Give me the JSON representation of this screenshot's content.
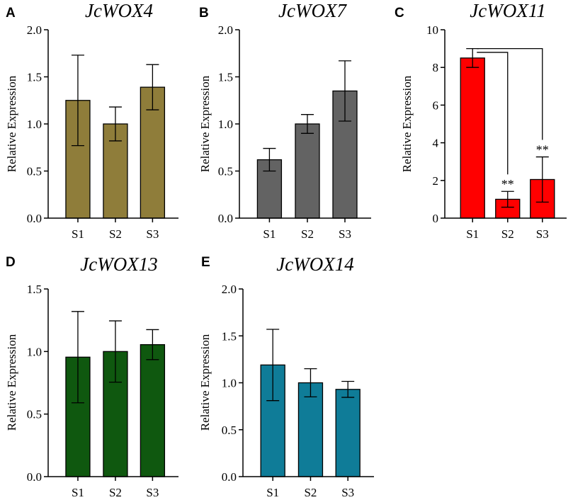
{
  "chart_data": [
    {
      "type": "bar",
      "panel": "A",
      "title": "JcWOX4",
      "ylabel": "Relative Expression",
      "xlabel": "",
      "categories": [
        "S1",
        "S2",
        "S3"
      ],
      "values": [
        1.25,
        1.0,
        1.39
      ],
      "errors": [
        0.48,
        0.18,
        0.24
      ],
      "ylim": [
        0,
        2.0
      ],
      "yticks": [
        "0.0",
        "0.5",
        "1.0",
        "1.5",
        "2.0"
      ],
      "color": "#8F7D3A",
      "significance": [],
      "brackets": []
    },
    {
      "type": "bar",
      "panel": "B",
      "title": "JcWOX7",
      "ylabel": "Relative Expression",
      "xlabel": "",
      "categories": [
        "S1",
        "S2",
        "S3"
      ],
      "values": [
        0.62,
        1.0,
        1.35
      ],
      "errors": [
        0.12,
        0.1,
        0.32
      ],
      "ylim": [
        0,
        2.0
      ],
      "yticks": [
        "0.0",
        "0.5",
        "1.0",
        "1.5",
        "2.0"
      ],
      "color": "#636363",
      "significance": [],
      "brackets": []
    },
    {
      "type": "bar",
      "panel": "C",
      "title": "JcWOX11",
      "ylabel": "Relative Expression",
      "xlabel": "",
      "categories": [
        "S1",
        "S2",
        "S3"
      ],
      "values": [
        8.5,
        1.0,
        2.05
      ],
      "errors": [
        0.5,
        0.42,
        1.2
      ],
      "ylim": [
        0,
        10
      ],
      "yticks": [
        "0",
        "2",
        "4",
        "6",
        "8",
        "10"
      ],
      "color": "#FF0000",
      "significance": [
        "",
        "**",
        "**"
      ],
      "brackets": [
        {
          "from": 0,
          "to": 1,
          "level": 8.8
        },
        {
          "from": 0,
          "to": 2,
          "level": 9.0
        }
      ]
    },
    {
      "type": "bar",
      "panel": "D",
      "title": "JcWOX13",
      "ylabel": "Relative Expression",
      "xlabel": "",
      "categories": [
        "S1",
        "S2",
        "S3"
      ],
      "values": [
        0.955,
        1.0,
        1.055
      ],
      "errors": [
        0.365,
        0.245,
        0.12
      ],
      "ylim": [
        0,
        1.5
      ],
      "yticks": [
        "0.0",
        "0.5",
        "1.0",
        "1.5"
      ],
      "color": "#0F580F",
      "significance": [],
      "brackets": []
    },
    {
      "type": "bar",
      "panel": "E",
      "title": "JcWOX14",
      "ylabel": "Relative Expression",
      "xlabel": "",
      "categories": [
        "S1",
        "S2",
        "S3"
      ],
      "values": [
        1.19,
        1.0,
        0.93
      ],
      "errors": [
        0.38,
        0.15,
        0.085
      ],
      "ylim": [
        0,
        2.0
      ],
      "yticks": [
        "0.0",
        "0.5",
        "1.0",
        "1.5",
        "2.0"
      ],
      "color": "#0F7C98",
      "significance": [],
      "brackets": []
    }
  ]
}
